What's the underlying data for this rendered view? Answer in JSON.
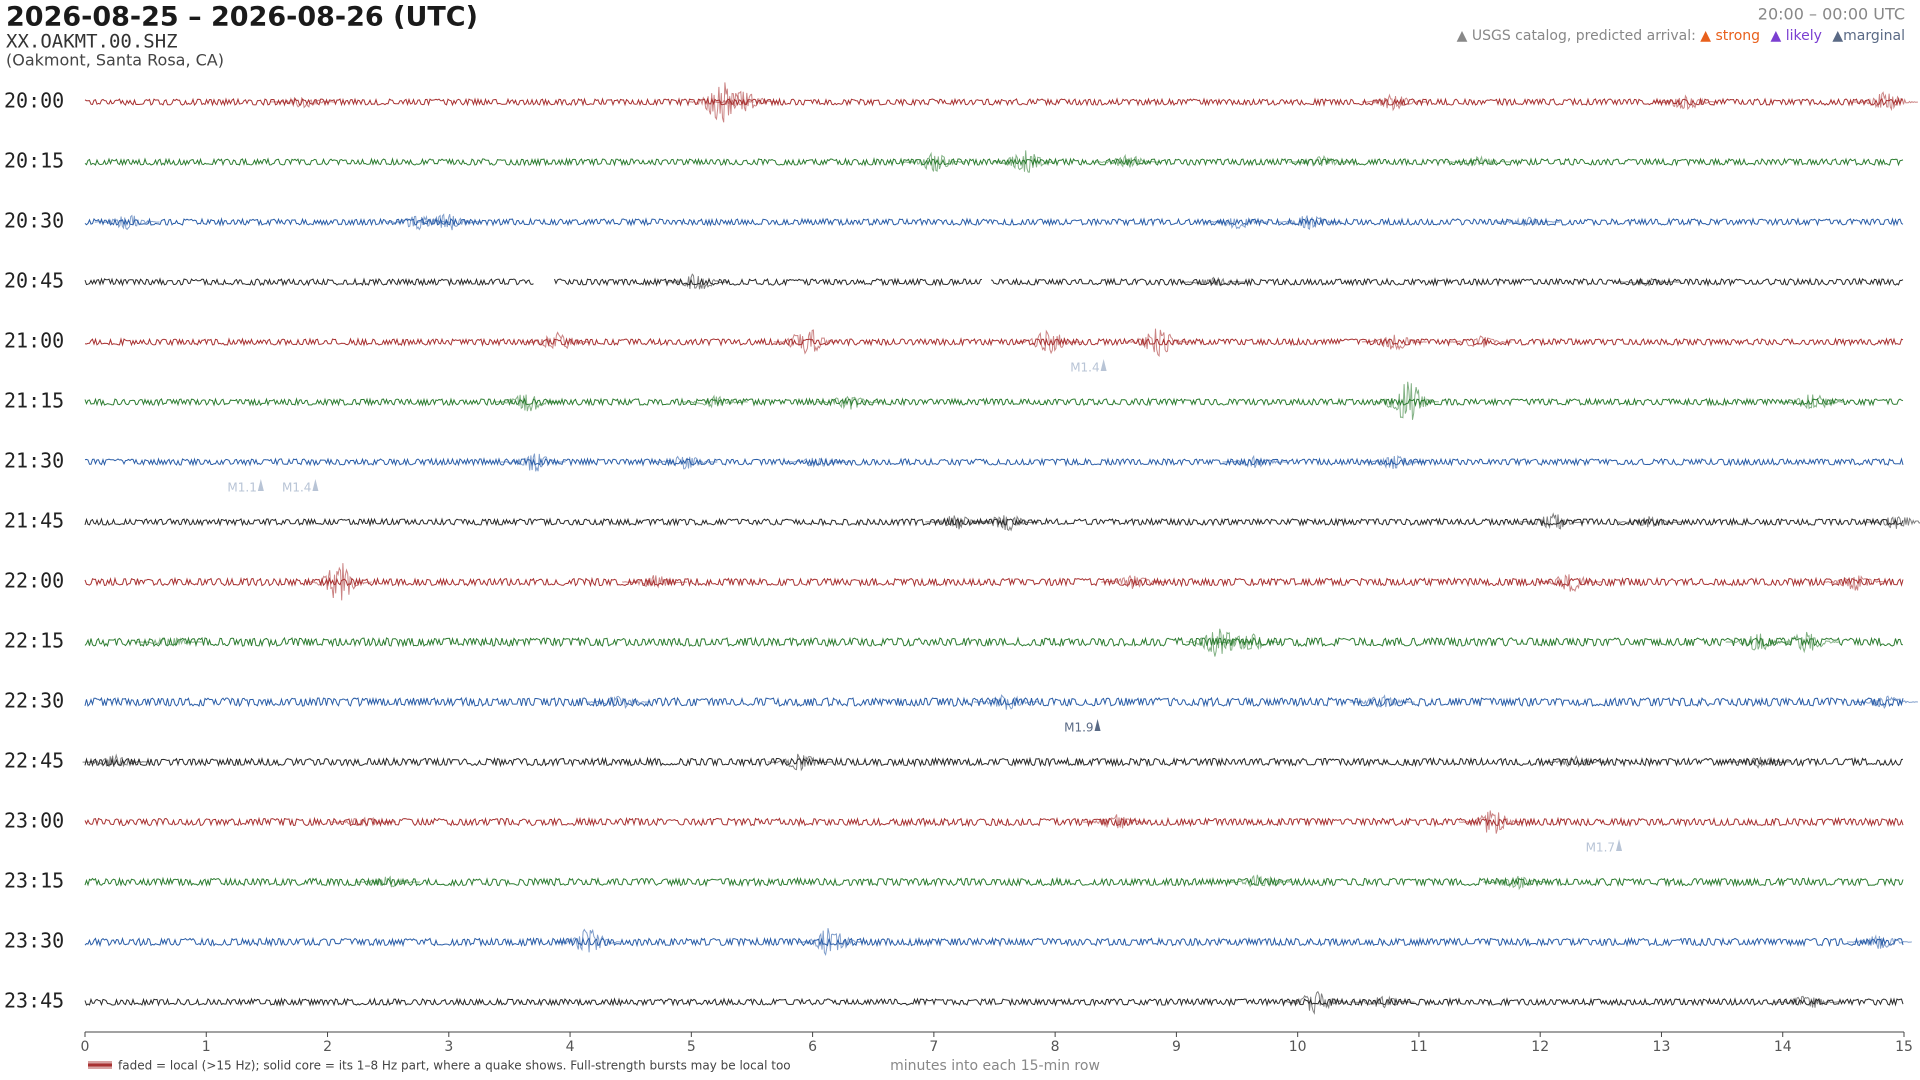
{
  "chart_data": {
    "type": "helicorder",
    "title": "2026-08-25 – 2026-08-26  (UTC)",
    "subtitle": "XX.OAKMT.00.SHZ",
    "location": "(Oakmont, Santa Rosa, CA)",
    "time_range": "20:00 – 00:00 UTC",
    "legend": {
      "label": "▲ USGS catalog, predicted arrival:",
      "entries": [
        {
          "label": "▲ strong",
          "color": "#e8601c"
        },
        {
          "label": "▲ likely",
          "color": "#7b3fd1"
        },
        {
          "label": "▲marginal",
          "color": "#5a6a85"
        }
      ]
    },
    "xlabel": "minutes into each 15-min row",
    "note": "faded = local (>15 Hz); solid core = its 1–8 Hz part, where a quake shows. Full-strength bursts may be local too",
    "xlim": [
      0,
      15
    ],
    "xticks": [
      0,
      1,
      2,
      3,
      4,
      5,
      6,
      7,
      8,
      9,
      10,
      11,
      12,
      13,
      14,
      15
    ],
    "rows": [
      {
        "label": "20:00",
        "color": "#a83232",
        "noise": 3,
        "gaps": [],
        "bursts": [
          [
            1.8,
            6
          ],
          [
            5.25,
            22
          ],
          [
            5.45,
            12
          ],
          [
            10.8,
            8
          ],
          [
            13.2,
            8
          ],
          [
            14.85,
            10
          ]
        ],
        "events": []
      },
      {
        "label": "20:15",
        "color": "#2e7d32",
        "noise": 3,
        "gaps": [],
        "bursts": [
          [
            7.0,
            10
          ],
          [
            7.75,
            12
          ],
          [
            8.6,
            7
          ],
          [
            10.2,
            6
          ],
          [
            11.5,
            6
          ]
        ],
        "events": []
      },
      {
        "label": "20:30",
        "color": "#2b5ea8",
        "noise": 3,
        "gaps": [],
        "bursts": [
          [
            0.35,
            8
          ],
          [
            2.75,
            8
          ],
          [
            3.0,
            9
          ],
          [
            9.5,
            7
          ],
          [
            10.1,
            8
          ],
          [
            11.9,
            5
          ]
        ],
        "events": []
      },
      {
        "label": "20:45",
        "color": "#2a2a2a",
        "noise": 3,
        "gaps": [
          [
            3.7,
            3.86
          ],
          [
            7.4,
            7.47
          ]
        ],
        "bursts": [
          [
            5.05,
            9
          ],
          [
            9.3,
            5
          ],
          [
            12.9,
            4
          ]
        ],
        "events": []
      },
      {
        "label": "21:00",
        "color": "#a83232",
        "noise": 3,
        "gaps": [],
        "bursts": [
          [
            3.9,
            10
          ],
          [
            5.95,
            15
          ],
          [
            7.95,
            12
          ],
          [
            8.85,
            14
          ],
          [
            10.8,
            9
          ],
          [
            11.5,
            6
          ]
        ],
        "events": [
          {
            "x": 8.4,
            "label": "M1.4",
            "color": "#b8c4d6"
          }
        ]
      },
      {
        "label": "21:15",
        "color": "#2e7d32",
        "noise": 3,
        "gaps": [],
        "bursts": [
          [
            3.65,
            10
          ],
          [
            5.2,
            6
          ],
          [
            6.3,
            8
          ],
          [
            10.9,
            22
          ],
          [
            14.25,
            9
          ]
        ],
        "events": []
      },
      {
        "label": "21:30",
        "color": "#2b5ea8",
        "noise": 3,
        "gaps": [],
        "bursts": [
          [
            3.7,
            10
          ],
          [
            4.95,
            7
          ],
          [
            6.05,
            6
          ],
          [
            9.65,
            6
          ],
          [
            10.8,
            7
          ]
        ],
        "events": [
          {
            "x": 1.45,
            "label": "M1.1",
            "color": "#b8c4d6"
          },
          {
            "x": 1.9,
            "label": "M1.4",
            "color": "#b8c4d6"
          }
        ]
      },
      {
        "label": "21:45",
        "color": "#2a2a2a",
        "noise": 3,
        "gaps": [],
        "bursts": [
          [
            7.2,
            8
          ],
          [
            7.6,
            9
          ],
          [
            12.1,
            9
          ],
          [
            12.9,
            6
          ],
          [
            14.95,
            7
          ]
        ],
        "events": []
      },
      {
        "label": "22:00",
        "color": "#a83232",
        "noise": 3.5,
        "gaps": [],
        "bursts": [
          [
            2.1,
            20
          ],
          [
            4.7,
            7
          ],
          [
            8.65,
            7
          ],
          [
            12.25,
            10
          ],
          [
            14.6,
            9
          ]
        ],
        "events": []
      },
      {
        "label": "22:15",
        "color": "#2e7d32",
        "noise": 4,
        "gaps": [],
        "bursts": [
          [
            0.7,
            5
          ],
          [
            9.35,
            16
          ],
          [
            9.6,
            10
          ],
          [
            13.8,
            9
          ],
          [
            14.2,
            11
          ]
        ],
        "events": []
      },
      {
        "label": "22:30",
        "color": "#2b5ea8",
        "noise": 4,
        "gaps": [],
        "bursts": [
          [
            4.4,
            7
          ],
          [
            7.6,
            8
          ],
          [
            10.7,
            7
          ],
          [
            14.85,
            6
          ]
        ],
        "events": [
          {
            "x": 8.35,
            "label": "M1.9",
            "color": "#5a6a85"
          }
        ]
      },
      {
        "label": "22:45",
        "color": "#2a2a2a",
        "noise": 3.5,
        "gaps": [],
        "bursts": [
          [
            0.25,
            7
          ],
          [
            5.9,
            9
          ],
          [
            12.3,
            6
          ],
          [
            13.8,
            6
          ]
        ],
        "events": []
      },
      {
        "label": "23:00",
        "color": "#a83232",
        "noise": 3.5,
        "gaps": [],
        "bursts": [
          [
            2.3,
            6
          ],
          [
            8.5,
            8
          ],
          [
            11.6,
            13
          ]
        ],
        "events": [
          {
            "x": 12.65,
            "label": "M1.7",
            "color": "#b8c4d6"
          }
        ]
      },
      {
        "label": "23:15",
        "color": "#2e7d32",
        "noise": 3.5,
        "gaps": [],
        "bursts": [
          [
            2.5,
            6
          ],
          [
            9.7,
            8
          ],
          [
            11.8,
            7
          ]
        ],
        "events": []
      },
      {
        "label": "23:30",
        "color": "#2b5ea8",
        "noise": 3.5,
        "gaps": [],
        "bursts": [
          [
            4.15,
            14
          ],
          [
            6.15,
            15
          ],
          [
            14.8,
            8
          ]
        ],
        "events": []
      },
      {
        "label": "23:45",
        "color": "#2a2a2a",
        "noise": 3,
        "gaps": [],
        "bursts": [
          [
            10.15,
            12
          ],
          [
            10.7,
            6
          ],
          [
            14.2,
            8
          ]
        ],
        "events": []
      }
    ]
  }
}
